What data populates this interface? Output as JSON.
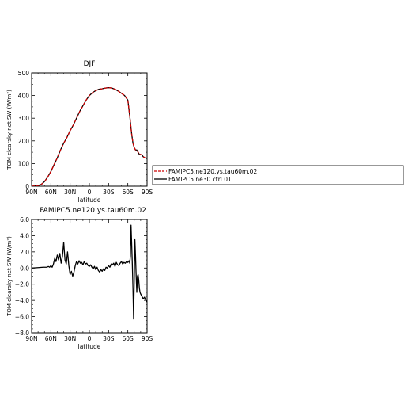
{
  "chart_data": [
    {
      "type": "line",
      "title": "DJF",
      "ylabel": "TOM clearsky net SW (W/m²)",
      "xlabel": "latitude",
      "x_ticks": [
        -90,
        -60,
        -30,
        0,
        30,
        60,
        90
      ],
      "x_tick_labels": [
        "90N",
        "60N",
        "30N",
        "0",
        "30S",
        "60S",
        "90S"
      ],
      "y_ticks": [
        0,
        100,
        200,
        300,
        400,
        500
      ],
      "y_tick_labels": [
        "0",
        "100",
        "200",
        "300",
        "400",
        "500"
      ],
      "xlim": [
        -90,
        90
      ],
      "ylim": [
        0,
        500
      ],
      "legend_position": "right",
      "series": [
        {
          "name": "FAMIPC5.ne120.ys.tau60m.02",
          "color": "#cc0000",
          "style": "dashed",
          "x": [
            -90,
            -85,
            -80,
            -75,
            -70,
            -65,
            -60,
            -55,
            -50,
            -45,
            -40,
            -35,
            -30,
            -25,
            -20,
            -15,
            -10,
            -5,
            0,
            5,
            10,
            15,
            20,
            25,
            30,
            35,
            40,
            45,
            50,
            55,
            60,
            63,
            66,
            68,
            70,
            72,
            74,
            76,
            78,
            80,
            82,
            84,
            86,
            88,
            90
          ],
          "y": [
            0,
            1,
            3,
            8,
            20,
            40,
            65,
            95,
            125,
            160,
            190,
            215,
            245,
            270,
            300,
            330,
            355,
            380,
            400,
            413,
            422,
            428,
            430,
            433,
            435,
            433,
            428,
            420,
            410,
            400,
            380,
            310,
            230,
            190,
            170,
            160,
            160,
            150,
            140,
            140,
            138,
            130,
            126,
            124,
            122
          ]
        },
        {
          "name": "FAMIPC5.ne30.ctrl.01",
          "color": "#000000",
          "style": "solid",
          "x": [
            -90,
            -85,
            -80,
            -75,
            -70,
            -65,
            -60,
            -55,
            -50,
            -45,
            -40,
            -35,
            -30,
            -25,
            -20,
            -15,
            -10,
            -5,
            0,
            5,
            10,
            15,
            20,
            25,
            30,
            35,
            40,
            45,
            50,
            55,
            60,
            63,
            66,
            68,
            70,
            72,
            74,
            76,
            78,
            80,
            82,
            84,
            86,
            88,
            90
          ],
          "y": [
            0,
            1,
            3,
            8,
            20,
            40,
            65,
            95,
            125,
            160,
            190,
            215,
            245,
            270,
            300,
            330,
            355,
            380,
            400,
            413,
            422,
            428,
            430,
            433,
            435,
            433,
            428,
            420,
            410,
            400,
            380,
            310,
            230,
            190,
            170,
            160,
            160,
            150,
            140,
            140,
            138,
            130,
            126,
            124,
            122
          ]
        }
      ]
    },
    {
      "type": "line",
      "title": "FAMIPC5.ne120.ys.tau60m.02",
      "ylabel": "TOM clearsky net SW (W/m²)",
      "xlabel": "latitude",
      "x_ticks": [
        -90,
        -60,
        -30,
        0,
        30,
        60,
        90
      ],
      "x_tick_labels": [
        "90N",
        "60N",
        "30N",
        "0",
        "30S",
        "60S",
        "90S"
      ],
      "y_ticks": [
        -8,
        -6,
        -4,
        -2,
        0,
        2,
        4,
        6
      ],
      "y_tick_labels": [
        "−8.0",
        "−6.0",
        "−4.0",
        "−2.0",
        "0.0",
        "2.0",
        "4.0",
        "6.0"
      ],
      "xlim": [
        -90,
        90
      ],
      "ylim": [
        -8,
        6
      ],
      "series": [
        {
          "name": "",
          "color": "#000000",
          "style": "solid",
          "x": [
            -90,
            -80,
            -72,
            -66,
            -64,
            -62,
            -60,
            -58,
            -56,
            -54,
            -52,
            -50,
            -48,
            -46,
            -44,
            -42,
            -40,
            -38,
            -36,
            -34,
            -32,
            -30,
            -28,
            -26,
            -24,
            -22,
            -20,
            -18,
            -16,
            -14,
            -12,
            -10,
            -8,
            -6,
            -4,
            -2,
            0,
            2,
            4,
            6,
            8,
            10,
            12,
            14,
            16,
            18,
            20,
            22,
            24,
            26,
            28,
            30,
            32,
            34,
            36,
            38,
            40,
            42,
            44,
            46,
            48,
            50,
            52,
            54,
            56,
            58,
            60,
            62,
            63,
            64,
            65,
            66,
            67,
            68,
            69,
            70,
            71,
            72,
            73,
            74,
            75,
            76,
            77,
            78,
            79,
            80,
            82,
            84,
            86,
            88,
            90
          ],
          "y": [
            0,
            0.05,
            0.1,
            0.1,
            0.2,
            0.1,
            0.3,
            0.1,
            0.5,
            1.2,
            0.8,
            1.6,
            1.0,
            1.8,
            0.6,
            1.4,
            3.2,
            1.0,
            0.5,
            2.0,
            0.3,
            -0.8,
            -0.4,
            -1.0,
            -0.5,
            0.3,
            0.8,
            0.5,
            0.9,
            0.6,
            0.7,
            0.4,
            0.8,
            0.5,
            0.6,
            0.3,
            0.2,
            0.4,
            0.1,
            -0.1,
            0.2,
            -0.2,
            0.1,
            -0.3,
            -0.5,
            -0.2,
            -0.4,
            -0.1,
            -0.3,
            0.1,
            0.0,
            0.3,
            0.1,
            0.5,
            0.4,
            0.6,
            0.2,
            0.7,
            0.4,
            0.3,
            0.6,
            0.8,
            0.5,
            0.7,
            0.6,
            0.8,
            0.7,
            0.9,
            0.6,
            1.5,
            5.3,
            3.0,
            0.5,
            -2.5,
            -6.3,
            -1.5,
            3.5,
            1.5,
            -1.0,
            -3.0,
            -1.0,
            -0.8,
            -1.5,
            -2.5,
            -3.0,
            -3.2,
            -3.5,
            -3.8,
            -3.6,
            -4.0,
            -4.2
          ]
        }
      ]
    }
  ]
}
